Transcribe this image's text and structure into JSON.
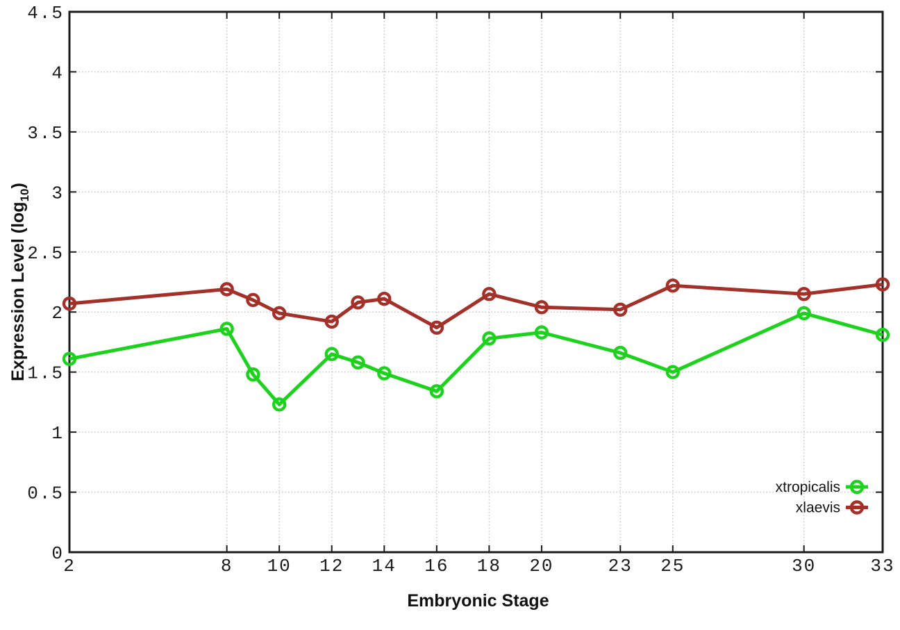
{
  "chart_data": {
    "type": "line",
    "title": "",
    "xlabel": "Embryonic Stage",
    "ylabel": "Expression Level (log10)",
    "ylabel_parts": {
      "prefix": "Expression Level (log",
      "subscript": "10",
      "suffix": ")"
    },
    "x": [
      2,
      8,
      9,
      10,
      12,
      13,
      14,
      16,
      18,
      20,
      23,
      25,
      30,
      33
    ],
    "series": [
      {
        "name": "xtropicalis",
        "color": "#1dd21d",
        "values": [
          1.61,
          1.86,
          1.48,
          1.23,
          1.65,
          1.58,
          1.49,
          1.34,
          1.78,
          1.83,
          1.66,
          1.5,
          1.99,
          1.81
        ]
      },
      {
        "name": "xlaevis",
        "color": "#a33029",
        "values": [
          2.07,
          2.19,
          2.1,
          1.99,
          1.92,
          2.08,
          2.11,
          1.87,
          2.15,
          2.04,
          2.02,
          2.22,
          2.15,
          2.23
        ]
      }
    ],
    "xticks": [
      2,
      8,
      10,
      12,
      14,
      16,
      18,
      20,
      23,
      25,
      30,
      33
    ],
    "yticks": [
      0,
      0.5,
      1,
      1.5,
      2,
      2.5,
      3,
      3.5,
      4,
      4.5
    ],
    "xlim": [
      2,
      33
    ],
    "ylim": [
      0,
      4.5
    ],
    "grid": true,
    "legend_position": "bottom-right",
    "legend": [
      "xtropicalis",
      "xlaevis"
    ]
  },
  "colors": {
    "axis": "#1b1b1b",
    "grid": "#c6c6c6",
    "background": "#ffffff"
  }
}
